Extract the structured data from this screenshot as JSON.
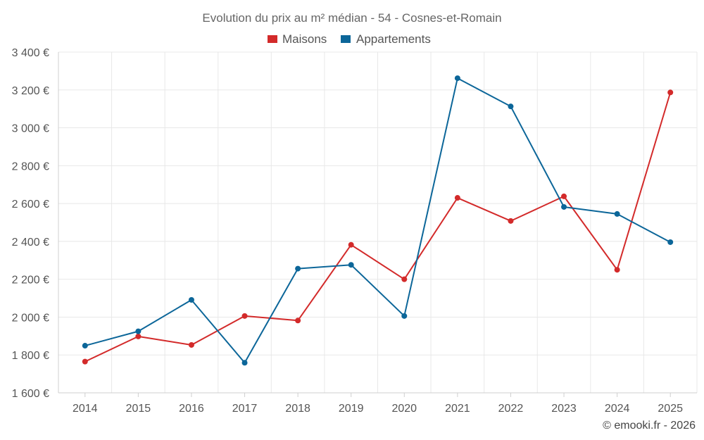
{
  "chart_data": {
    "type": "line",
    "title": "Evolution du prix au m² médian - 54 - Cosnes-et-Romain",
    "categories": [
      "2014",
      "2015",
      "2016",
      "2017",
      "2018",
      "2019",
      "2020",
      "2021",
      "2022",
      "2023",
      "2024",
      "2025"
    ],
    "series": [
      {
        "name": "Maisons",
        "color": "#d32a2a",
        "values": [
          1765,
          1898,
          1853,
          2006,
          1982,
          2382,
          2200,
          2630,
          2508,
          2638,
          2250,
          3187
        ]
      },
      {
        "name": "Appartements",
        "color": "#0c6699",
        "values": [
          1849,
          1925,
          2091,
          1759,
          2256,
          2276,
          2006,
          3262,
          3113,
          2582,
          2545,
          2396
        ]
      }
    ],
    "ylim": [
      1600,
      3400
    ],
    "yticks": [
      1600,
      1800,
      2000,
      2200,
      2400,
      2600,
      2800,
      3000,
      3200,
      3400
    ],
    "ytick_labels": [
      "1 600 €",
      "1 800 €",
      "2 000 €",
      "2 200 €",
      "2 400 €",
      "2 600 €",
      "2 800 €",
      "3 000 €",
      "3 200 €",
      "3 400 €"
    ],
    "xlabel": "",
    "ylabel": "",
    "grid": true,
    "legend_position": "top-center"
  },
  "credit": "© emooki.fr - 2026"
}
